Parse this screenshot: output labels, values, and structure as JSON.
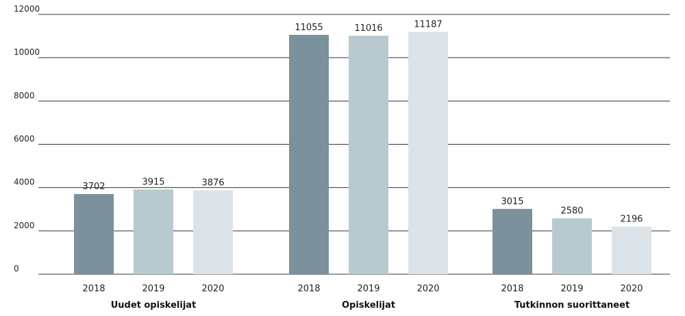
{
  "chart_data": {
    "type": "bar",
    "title": "",
    "xlabel": "",
    "ylabel": "",
    "ylim": [
      0,
      12000
    ],
    "yticks": [
      0,
      2000,
      4000,
      6000,
      8000,
      10000,
      12000
    ],
    "grid": true,
    "legend": "none",
    "groups": [
      {
        "label": "Uudet opiskelijat",
        "bars": [
          {
            "category": "2018",
            "value": 3702,
            "label": "3702"
          },
          {
            "category": "2019",
            "value": 3915,
            "label": "3915"
          },
          {
            "category": "2020",
            "value": 3876,
            "label": "3876"
          }
        ]
      },
      {
        "label": "Opiskelijat",
        "bars": [
          {
            "category": "2018",
            "value": 11055,
            "label": "11055"
          },
          {
            "category": "2019",
            "value": 11016,
            "label": "11016"
          },
          {
            "category": "2020",
            "value": 11187,
            "label": "11187"
          }
        ]
      },
      {
        "label": "Tutkinnon suorittaneet",
        "bars": [
          {
            "category": "2018",
            "value": 3015,
            "label": "3015"
          },
          {
            "category": "2019",
            "value": 2580,
            "label": "2580"
          },
          {
            "category": "2020",
            "value": 2196,
            "label": "2196"
          }
        ]
      }
    ],
    "colors": {
      "2018": "#7b919c",
      "2019": "#b9c9d0",
      "2020": "#dbe3e8",
      "grid": "#333333"
    }
  }
}
